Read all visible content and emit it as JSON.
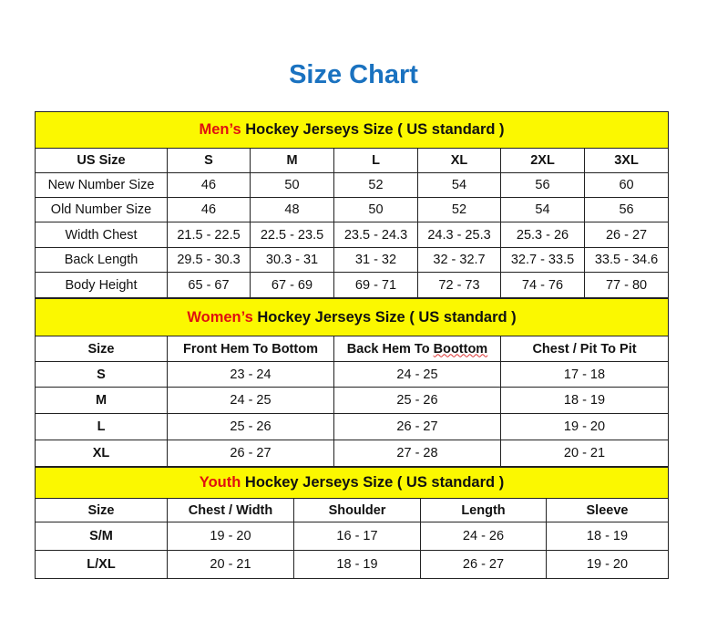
{
  "title": "Size Chart",
  "colors": {
    "title": "#1a72c0",
    "section_bg": "#fbf800",
    "highlight": "#e01010"
  },
  "men": {
    "heading_highlight": "Men’s",
    "heading_rest": " Hockey Jerseys Size ( US standard )",
    "columns": [
      "US Size",
      "S",
      "M",
      "L",
      "XL",
      "2XL",
      "3XL"
    ],
    "rows": [
      [
        "New Number Size",
        "46",
        "50",
        "52",
        "54",
        "56",
        "60"
      ],
      [
        "Old Number Size",
        "46",
        "48",
        "50",
        "52",
        "54",
        "56"
      ],
      [
        "Width Chest",
        "21.5 - 22.5",
        "22.5 - 23.5",
        "23.5 - 24.3",
        "24.3 - 25.3",
        "25.3 - 26",
        "26 - 27"
      ],
      [
        "Back Length",
        "29.5 - 30.3",
        "30.3 - 31",
        "31 - 32",
        "32 - 32.7",
        "32.7 - 33.5",
        "33.5 - 34.6"
      ],
      [
        "Body Height",
        "65 - 67",
        "67 - 69",
        "69 - 71",
        "72 - 73",
        "74 - 76",
        "77 - 80"
      ]
    ]
  },
  "women": {
    "heading_highlight": "Women’s",
    "heading_rest": " Hockey Jerseys Size ( US standard )",
    "columns": [
      "Size",
      "Front Hem To Bottom",
      "Back Hem To Boottom",
      "Chest / Pit To Pit"
    ],
    "rows": [
      [
        "S",
        "23 - 24",
        "24 - 25",
        "17 - 18"
      ],
      [
        "M",
        "24 - 25",
        "25 - 26",
        "18 - 19"
      ],
      [
        "L",
        "25 - 26",
        "26 - 27",
        "19 - 20"
      ],
      [
        "XL",
        "26 - 27",
        "27 - 28",
        "20 - 21"
      ]
    ]
  },
  "youth": {
    "heading_highlight": "Youth",
    "heading_rest": " Hockey Jerseys Size ( US standard )",
    "columns": [
      "Size",
      "Chest / Width",
      "Shoulder",
      "Length",
      "Sleeve"
    ],
    "rows": [
      [
        "S/M",
        "19 - 20",
        "16 - 17",
        "24 - 26",
        "18 - 19"
      ],
      [
        "L/XL",
        "20 - 21",
        "18 - 19",
        "26 - 27",
        "19 - 20"
      ]
    ]
  }
}
